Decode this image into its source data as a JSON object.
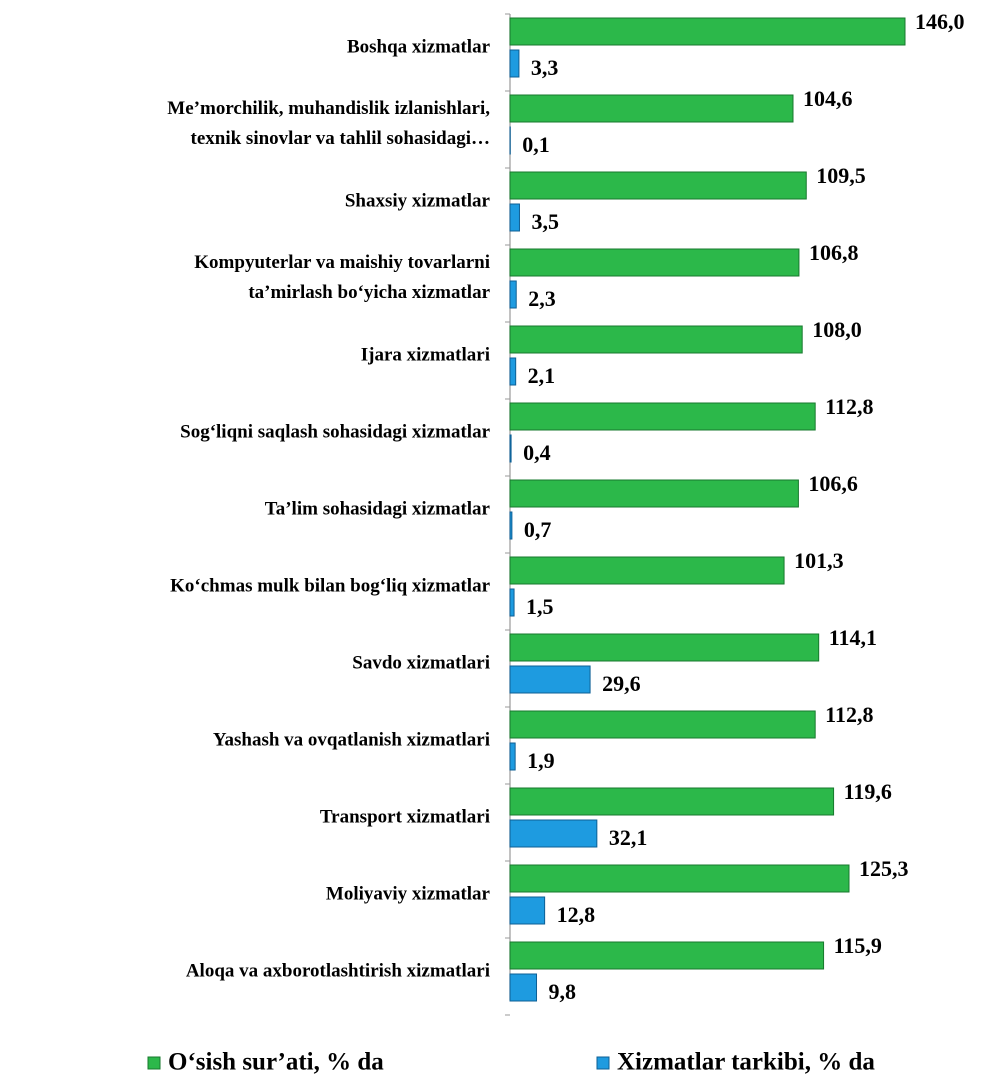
{
  "chart_data": {
    "type": "bar",
    "orientation": "horizontal",
    "categories": [
      "Boshqa xizmatlar",
      "Me’morchilik, muhandislik izlanishlari,\ntexnik sinovlar va tahlil sohasidagi…",
      "Shaxsiy xizmatlar",
      "Kompyuterlar va maishiy tovarlarni\nta’mirlash bo‘yicha xizmatlar",
      "Ijara xizmatlari",
      "Sog‘liqni saqlash sohasidagi xizmatlar",
      "Ta’lim sohasidagi xizmatlar",
      "Ko‘chmas mulk bilan bog‘liq xizmatlar",
      "Savdo xizmatlari",
      "Yashash va ovqatlanish xizmatlari",
      "Transport xizmatlari",
      "Moliyaviy  xizmatlar",
      "Aloqa va axborotlashtirish xizmatlari"
    ],
    "series": [
      {
        "name": "O‘sish sur’ati, % da",
        "color": "#2cb84a",
        "values": [
          146.0,
          104.6,
          109.5,
          106.8,
          108.0,
          112.8,
          106.6,
          101.3,
          114.1,
          112.8,
          119.6,
          125.3,
          115.9
        ],
        "value_labels": [
          "146,0",
          "104,6",
          "109,5",
          "106,8",
          "108,0",
          "112,8",
          "106,6",
          "101,3",
          "114,1",
          "112,8",
          "119,6",
          "125,3",
          "115,9"
        ]
      },
      {
        "name": "Xizmatlar tarkibi, % da",
        "color": "#1e9be0",
        "values": [
          3.3,
          0.1,
          3.5,
          2.3,
          2.1,
          0.4,
          0.7,
          1.5,
          29.6,
          1.9,
          32.1,
          12.8,
          9.8
        ],
        "value_labels": [
          "3,3",
          "0,1",
          "3,5",
          "2,3",
          "2,1",
          "0,4",
          "0,7",
          "1,5",
          "29,6",
          "1,9",
          "32,1",
          "12,8",
          "9,8"
        ]
      }
    ],
    "legend": "bottom"
  }
}
